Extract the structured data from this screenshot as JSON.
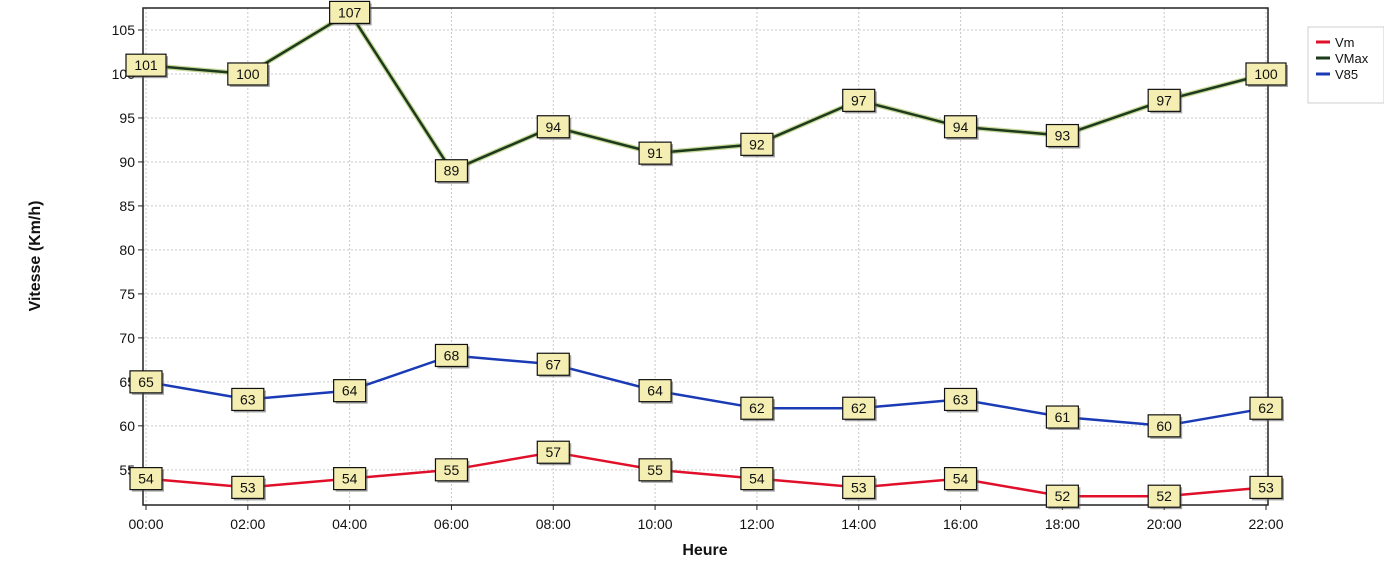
{
  "chart_data": {
    "type": "line",
    "title": "",
    "xlabel": "Heure",
    "ylabel": "Vitesse (Km/h)",
    "categories": [
      "00:00",
      "02:00",
      "04:00",
      "06:00",
      "08:00",
      "10:00",
      "12:00",
      "14:00",
      "16:00",
      "18:00",
      "20:00",
      "22:00"
    ],
    "yticks": [
      55,
      60,
      65,
      70,
      75,
      80,
      85,
      90,
      95,
      100,
      105
    ],
    "ylim": [
      51,
      107.5
    ],
    "grid": true,
    "legend_position": "top-right",
    "series": [
      {
        "name": "Vm",
        "color": "#e0102a",
        "values": [
          54,
          53,
          54,
          55,
          57,
          55,
          54,
          53,
          54,
          52,
          52,
          53
        ]
      },
      {
        "name": "VMax",
        "color": "#1c3a1c",
        "values": [
          101,
          100,
          107,
          89,
          94,
          91,
          92,
          97,
          94,
          93,
          97,
          100
        ]
      },
      {
        "name": "V85",
        "color": "#1a3bb5",
        "values": [
          65,
          63,
          64,
          68,
          67,
          64,
          62,
          62,
          63,
          61,
          60,
          62
        ]
      }
    ],
    "label_style": {
      "fill": "#f5eeb2",
      "border": "#111111"
    }
  }
}
